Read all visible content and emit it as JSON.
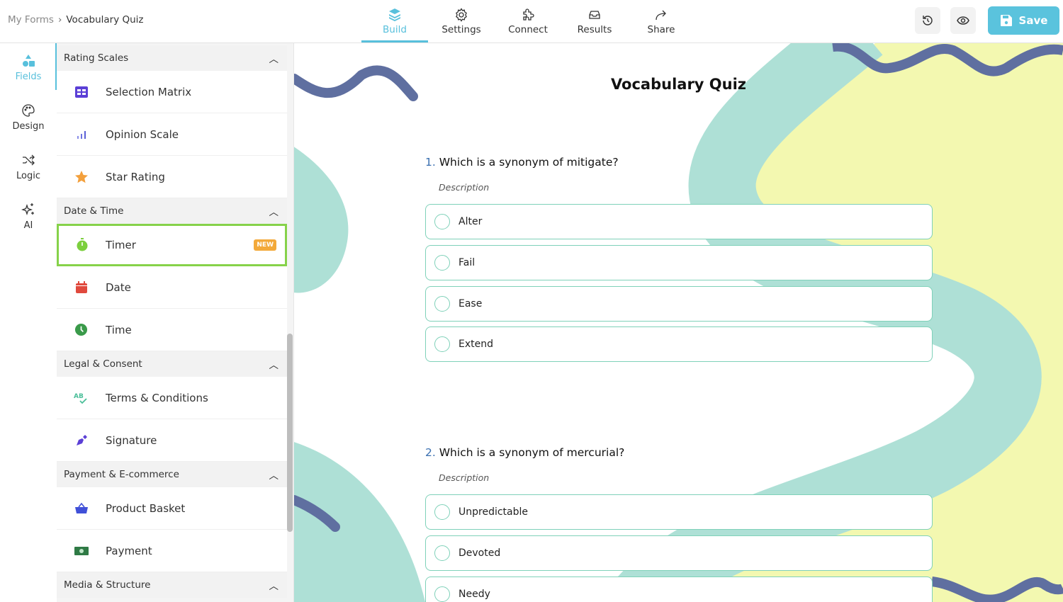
{
  "breadcrumb": {
    "parent": "My Forms",
    "current": "Vocabulary Quiz"
  },
  "tabs": [
    {
      "label": "Build",
      "icon": "layers-icon"
    },
    {
      "label": "Settings",
      "icon": "gear-icon"
    },
    {
      "label": "Connect",
      "icon": "puzzle-icon"
    },
    {
      "label": "Results",
      "icon": "inbox-icon"
    },
    {
      "label": "Share",
      "icon": "share-icon"
    }
  ],
  "actions": {
    "save_label": "Save"
  },
  "rail": [
    {
      "label": "Fields"
    },
    {
      "label": "Design"
    },
    {
      "label": "Logic"
    },
    {
      "label": "AI"
    }
  ],
  "panel": {
    "rating_header": "Rating Scales",
    "rating": [
      "Selection Matrix",
      "Opinion Scale",
      "Star Rating"
    ],
    "datetime_header": "Date & Time",
    "datetime": [
      "Timer",
      "Date",
      "Time"
    ],
    "new_badge": "NEW",
    "legal_header": "Legal & Consent",
    "legal": [
      "Terms & Conditions",
      "Signature"
    ],
    "payment_header": "Payment & E-commerce",
    "payment": [
      "Product Basket",
      "Payment"
    ],
    "media_header": "Media & Structure"
  },
  "form": {
    "title": "Vocabulary Quiz",
    "questions": [
      {
        "num": "1.",
        "text": "Which is a synonym of mitigate?",
        "description": "Description",
        "options": [
          "Alter",
          "Fail",
          "Ease",
          "Extend"
        ]
      },
      {
        "num": "2.",
        "text": "Which is a synonym of mercurial?",
        "description": "Description",
        "options": [
          "Unpredictable",
          "Devoted",
          "Needy"
        ]
      }
    ]
  },
  "colors": {
    "accent": "#58c0dc",
    "selected_border": "#86d24a",
    "teal": "#aee0d6",
    "yellow": "#f3f8b0",
    "navy": "#5f6fa0"
  }
}
